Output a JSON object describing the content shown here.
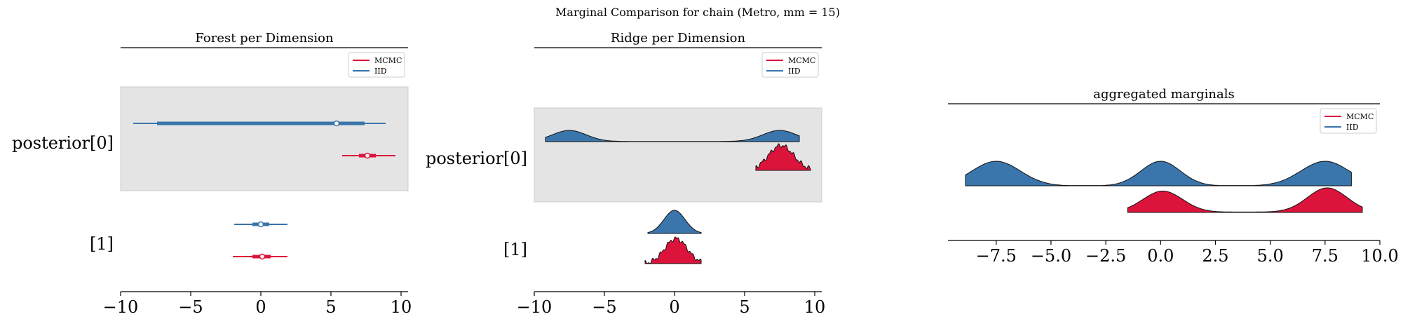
{
  "figure": {
    "suptitle": "Marginal Comparison for chain (Metro, mm = 15)",
    "colors": {
      "mcmc": "#dc143c",
      "iid": "#3a75ab",
      "band": "#e4e4e4",
      "band_edge": "#cccccc"
    }
  },
  "chart_data": [
    {
      "type": "forest",
      "title": "Forest per Dimension",
      "xlim": [
        -10,
        10.5
      ],
      "xticks": [
        -10,
        -5,
        0,
        5,
        10
      ],
      "xtick_labels": [
        "−10",
        "−5",
        "0",
        "5",
        "10"
      ],
      "rows": [
        "posterior[0]",
        "[1]"
      ],
      "legend": {
        "placement": "top-right",
        "entries": [
          "MCMC",
          "IID"
        ]
      },
      "series": [
        {
          "name": "MCMC",
          "color_key": "mcmc",
          "intervals": [
            {
              "row": 0,
              "hdi_low": 5.8,
              "hdi_high": 9.6,
              "iqr_low": 7.0,
              "iqr_high": 8.2,
              "median": 7.6
            },
            {
              "row": 1,
              "hdi_low": -2.0,
              "hdi_high": 1.9,
              "iqr_low": -0.6,
              "iqr_high": 0.7,
              "median": 0.1
            }
          ]
        },
        {
          "name": "IID",
          "color_key": "iid",
          "intervals": [
            {
              "row": 0,
              "hdi_low": -9.1,
              "hdi_high": 8.9,
              "iqr_low": -7.4,
              "iqr_high": 7.4,
              "median": 5.4
            },
            {
              "row": 1,
              "hdi_low": -1.9,
              "hdi_high": 1.9,
              "iqr_low": -0.6,
              "iqr_high": 0.6,
              "median": 0.0
            }
          ]
        }
      ]
    },
    {
      "type": "ridge",
      "title": "Ridge per Dimension",
      "xlim": [
        -10,
        10.5
      ],
      "xticks": [
        -10,
        -5,
        0,
        5,
        10
      ],
      "xtick_labels": [
        "−10",
        "−5",
        "0",
        "5",
        "10"
      ],
      "rows": [
        "posterior[0]",
        "[1]"
      ],
      "legend": {
        "placement": "top-right",
        "entries": [
          "MCMC",
          "IID"
        ]
      },
      "series": [
        {
          "name": "IID",
          "color_key": "iid",
          "ridges": [
            {
              "row": 0,
              "range": [
                -9.2,
                8.9
              ],
              "peaks": [
                [
                  -7.5,
                  1.2,
                  1.0
                ],
                [
                  7.5,
                  1.2,
                  1.0
                ]
              ],
              "base": 0.02
            },
            {
              "row": 1,
              "range": [
                -1.9,
                1.9
              ],
              "peaks": [
                [
                  0.0,
                  0.75,
                  1.0
                ]
              ],
              "base": 0.0
            }
          ]
        },
        {
          "name": "MCMC",
          "color_key": "mcmc",
          "ridges": [
            {
              "row": 0,
              "range": [
                5.8,
                9.7
              ],
              "peaks": [
                [
                  7.6,
                  0.9,
                  1.0
                ]
              ],
              "base": 0.0
            },
            {
              "row": 1,
              "range": [
                -2.1,
                1.9
              ],
              "peaks": [
                [
                  0.1,
                  0.8,
                  1.0
                ]
              ],
              "base": 0.0
            }
          ]
        }
      ]
    },
    {
      "type": "ridge",
      "title": "aggregated marginals",
      "xlim": [
        -9.7,
        10.0
      ],
      "xticks": [
        -7.5,
        -5.0,
        -2.5,
        0.0,
        2.5,
        5.0,
        7.5,
        10.0
      ],
      "xtick_labels": [
        "−7.5",
        "−5.0",
        "−2.5",
        "0.0",
        "2.5",
        "5.0",
        "7.5",
        "10.0"
      ],
      "legend": {
        "placement": "top-right",
        "entries": [
          "MCMC",
          "IID"
        ]
      },
      "series": [
        {
          "name": "IID",
          "color_key": "iid",
          "ridges": [
            {
              "row": 0,
              "range": [
                -8.9,
                8.7
              ],
              "peaks": [
                [
                  -7.5,
                  1.1,
                  1.0
                ],
                [
                  0.0,
                  0.9,
                  1.0
                ],
                [
                  7.5,
                  1.1,
                  1.0
                ]
              ],
              "base": 0.0
            }
          ]
        },
        {
          "name": "MCMC",
          "color_key": "mcmc",
          "ridges": [
            {
              "row": 1,
              "range": [
                -1.5,
                9.2
              ],
              "peaks": [
                [
                  0.1,
                  0.9,
                  1.0
                ],
                [
                  7.6,
                  0.9,
                  1.15
                ]
              ],
              "base": 0.02
            }
          ]
        }
      ]
    }
  ]
}
